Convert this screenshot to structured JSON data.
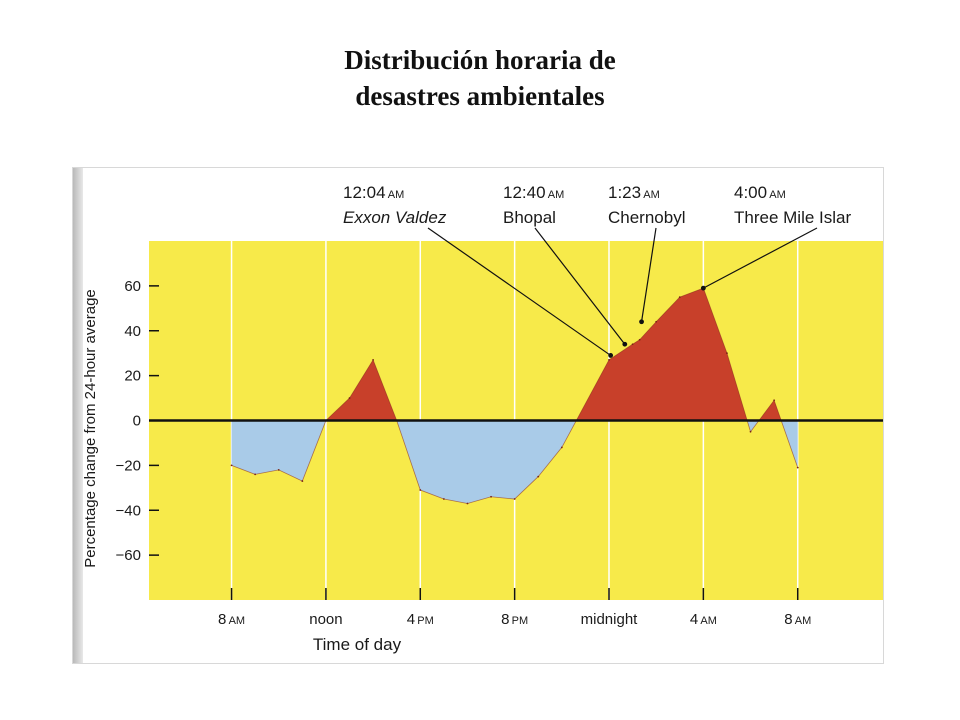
{
  "page_title": {
    "line1": "Distribución horaria de",
    "line2": "desastres ambientales"
  },
  "colors": {
    "plot_background": "#f7ea4a",
    "positive_fill": "#c8402a",
    "negative_fill": "#a9cbe8",
    "axis": "#111111",
    "gridline": "#ffffff"
  },
  "chart_data": {
    "type": "area",
    "xlabel": "Time of day",
    "ylabel": "Percentage change from 24-hour average",
    "ylim": [
      -80,
      80
    ],
    "xlim": [
      4.5,
      35.7
    ],
    "y_ticks": [
      "60",
      "40",
      "20",
      "0",
      "−20",
      "−40",
      "−60"
    ],
    "y_tick_values": [
      60,
      40,
      20,
      0,
      -20,
      -40,
      -60
    ],
    "x_ticks": [
      {
        "hour": 8,
        "main": "8",
        "suffix": "AM"
      },
      {
        "hour": 12,
        "main": "noon",
        "suffix": ""
      },
      {
        "hour": 16,
        "main": "4",
        "suffix": "PM"
      },
      {
        "hour": 20,
        "main": "8",
        "suffix": "PM"
      },
      {
        "hour": 24,
        "main": "midnight",
        "suffix": ""
      },
      {
        "hour": 28,
        "main": "4",
        "suffix": "AM"
      },
      {
        "hour": 32,
        "main": "8",
        "suffix": "AM"
      }
    ],
    "grid": true,
    "series": [
      {
        "x": [
          8,
          9,
          10,
          11,
          12,
          13,
          14,
          15,
          16,
          17,
          18,
          19,
          20,
          21,
          22,
          24,
          25,
          25.3,
          26,
          27,
          28,
          29,
          30,
          31,
          32
        ],
        "y": [
          -20,
          -24,
          -22,
          -27,
          0,
          10,
          27,
          0,
          -31,
          -35,
          -37,
          -34,
          -35,
          -25,
          -12,
          27,
          34,
          36,
          44,
          55,
          59,
          30,
          -5,
          9,
          -21
        ]
      }
    ],
    "annotations": [
      {
        "time": "12:04",
        "suffix": "AM",
        "label": "Exxon Valdez",
        "italic": true,
        "x": 24.07,
        "y": 29
      },
      {
        "time": "12:40",
        "suffix": "AM",
        "label": "Bhopal",
        "italic": false,
        "x": 24.67,
        "y": 34
      },
      {
        "time": "1:23",
        "suffix": "AM",
        "label": "Chernobyl",
        "italic": false,
        "x": 25.38,
        "y": 44
      },
      {
        "time": "4:00",
        "suffix": "AM",
        "label": "Three Mile Islar",
        "italic": false,
        "x": 28.0,
        "y": 59
      }
    ]
  }
}
